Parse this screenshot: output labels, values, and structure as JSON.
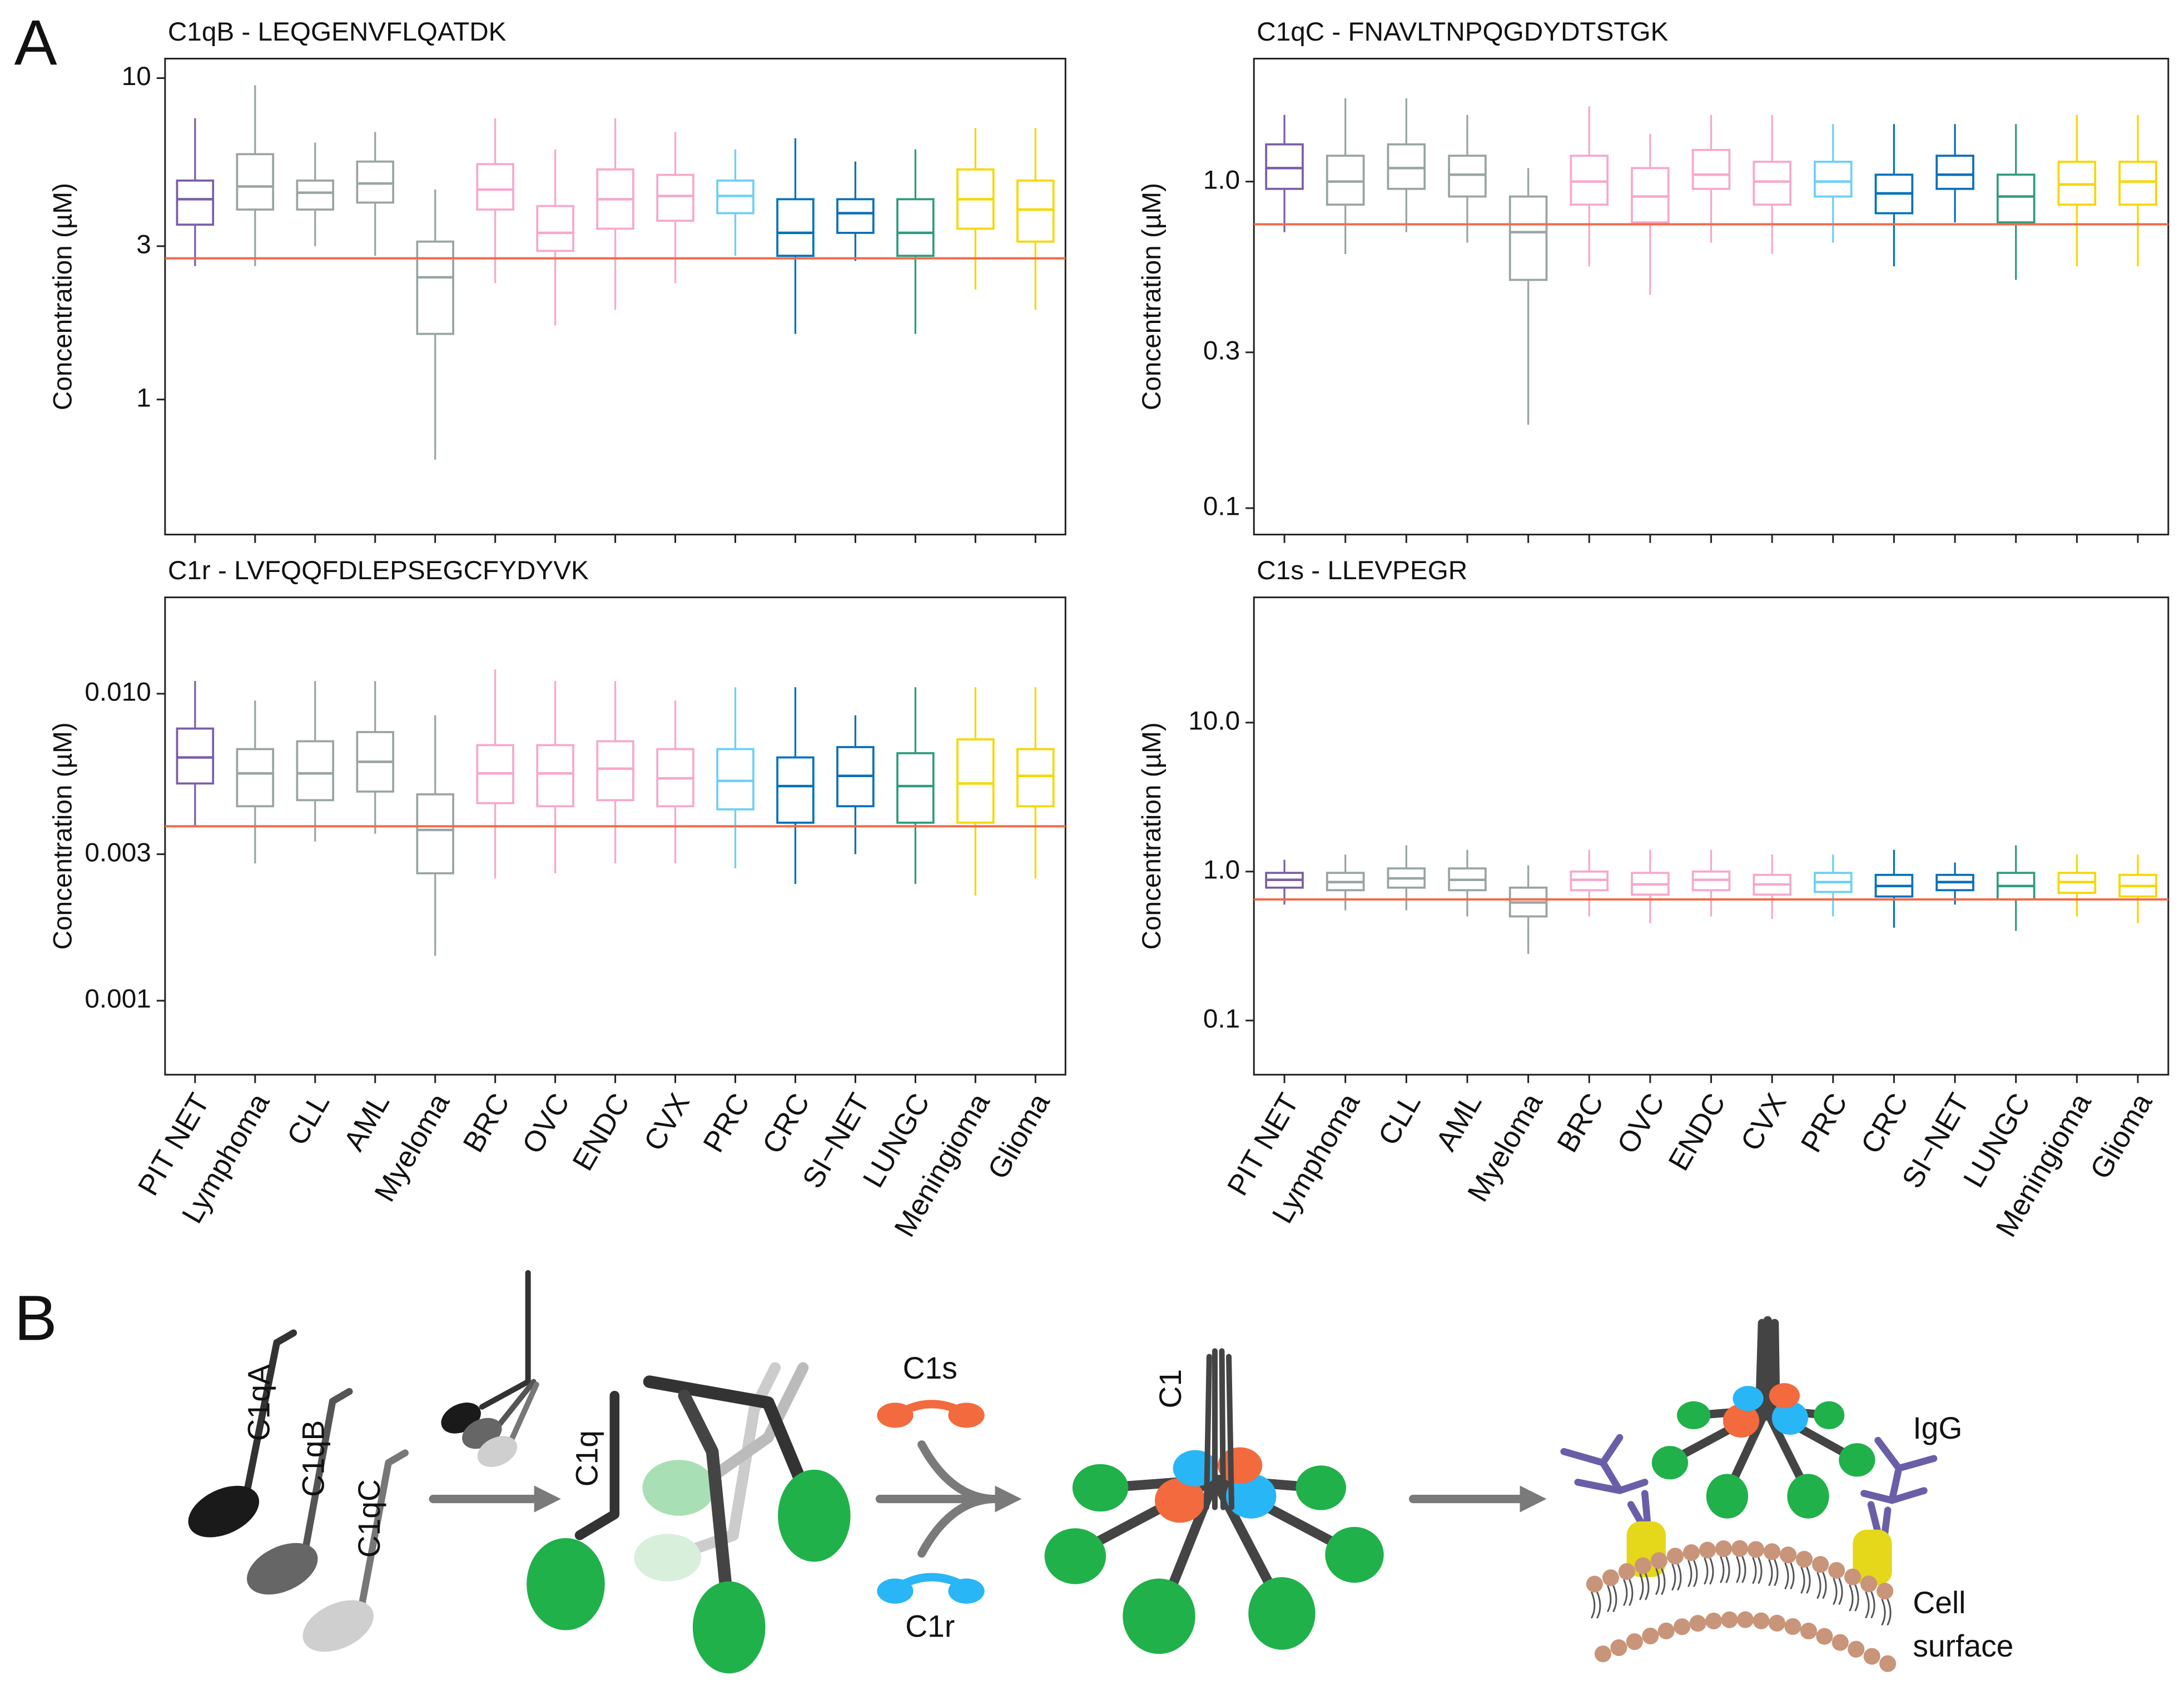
{
  "panel_labels": [
    "A",
    "B"
  ],
  "chart_data": [
    {
      "type": "box",
      "title": "C1qB - LEQGENVFLQATDK",
      "ylabel": "Concentration (µM)",
      "log_y": true,
      "ylim": [
        0.38,
        11.5
      ],
      "yticks": [
        1,
        3,
        10
      ],
      "hline": 2.75,
      "hline_color": "#f26b4a",
      "categories": [
        null,
        null,
        null,
        null,
        null,
        null,
        null,
        null,
        null,
        null,
        null,
        null,
        null,
        null,
        null
      ],
      "colors": [
        "#7b5ea7",
        "#9aa4a4",
        "#9aa4a4",
        "#9aa4a4",
        "#9aa4a4",
        "#f7a8cc",
        "#f7a8cc",
        "#f7a8cc",
        "#f7a8cc",
        "#6ccff6",
        "#0072bb",
        "#0b6fb8",
        "#2e9c7f",
        "#f5d800",
        "#f5d800"
      ],
      "min": [
        2.6,
        2.6,
        3.0,
        2.8,
        0.65,
        2.3,
        1.7,
        1.9,
        2.3,
        2.8,
        1.6,
        2.7,
        1.6,
        2.2,
        1.9
      ],
      "q1": [
        3.5,
        3.9,
        3.9,
        4.1,
        1.6,
        3.9,
        2.9,
        3.4,
        3.6,
        3.8,
        2.8,
        3.3,
        2.8,
        3.4,
        3.1
      ],
      "median": [
        4.2,
        4.6,
        4.4,
        4.7,
        2.4,
        4.5,
        3.3,
        4.2,
        4.3,
        4.3,
        3.3,
        3.8,
        3.3,
        4.2,
        3.9
      ],
      "q3": [
        4.8,
        5.8,
        4.8,
        5.5,
        3.1,
        5.4,
        4.0,
        5.2,
        5.0,
        4.8,
        4.2,
        4.2,
        4.2,
        5.2,
        4.8
      ],
      "max": [
        7.5,
        9.5,
        6.3,
        6.8,
        4.5,
        7.5,
        6.0,
        7.5,
        6.8,
        6.0,
        6.5,
        5.5,
        6.0,
        7.0,
        7.0
      ]
    },
    {
      "type": "box",
      "title": "C1qC - FNAVLTNPQGDYDTSTGK",
      "ylabel": "Concentration (µM)",
      "log_y": true,
      "ylim": [
        0.083,
        2.38
      ],
      "yticks": [
        0.1,
        0.3,
        {
          "value": 1,
          "label": "1.0"
        }
      ],
      "hline": 0.74,
      "hline_color": "#f26b4a",
      "categories": [
        null,
        null,
        null,
        null,
        null,
        null,
        null,
        null,
        null,
        null,
        null,
        null,
        null,
        null,
        null
      ],
      "colors": [
        "#7b5ea7",
        "#9aa4a4",
        "#9aa4a4",
        "#9aa4a4",
        "#9aa4a4",
        "#f7a8cc",
        "#f7a8cc",
        "#f7a8cc",
        "#f7a8cc",
        "#6ccff6",
        "#0072bb",
        "#0b6fb8",
        "#2e9c7f",
        "#f5d800",
        "#f5d800"
      ],
      "min": [
        0.7,
        0.6,
        0.7,
        0.65,
        0.18,
        0.55,
        0.45,
        0.65,
        0.6,
        0.65,
        0.55,
        0.75,
        0.5,
        0.55,
        0.55
      ],
      "q1": [
        0.95,
        0.85,
        0.95,
        0.9,
        0.5,
        0.85,
        0.75,
        0.95,
        0.85,
        0.9,
        0.8,
        0.95,
        0.75,
        0.85,
        0.85
      ],
      "median": [
        1.1,
        1.0,
        1.1,
        1.05,
        0.7,
        1.0,
        0.9,
        1.05,
        1.0,
        1.0,
        0.92,
        1.05,
        0.9,
        0.98,
        1.0
      ],
      "q3": [
        1.3,
        1.2,
        1.3,
        1.2,
        0.9,
        1.2,
        1.1,
        1.25,
        1.15,
        1.15,
        1.05,
        1.2,
        1.05,
        1.15,
        1.15
      ],
      "max": [
        1.6,
        1.8,
        1.8,
        1.6,
        1.1,
        1.7,
        1.4,
        1.6,
        1.6,
        1.5,
        1.5,
        1.5,
        1.5,
        1.6,
        1.6
      ]
    },
    {
      "type": "box",
      "title": "C1r - LVFQQFDLEPSEGCFYDYVK",
      "ylabel": "Concentration (µM)",
      "log_y": true,
      "ylim": [
        0.000574,
        0.0206
      ],
      "yticks": [
        0.001,
        0.003,
        {
          "value": 0.01,
          "label": "0.010"
        }
      ],
      "hline": 0.0037,
      "hline_color": "#f26b4a",
      "categories": [
        "PIT NET",
        "Lymphoma",
        "CLL",
        "AML",
        "Myeloma",
        "BRC",
        "OVC",
        "ENDC",
        "CVX",
        "PRC",
        "CRC",
        "SI−NET",
        "LUNGC",
        "Meningioma",
        "Glioma"
      ],
      "colors": [
        "#7b5ea7",
        "#9aa4a4",
        "#9aa4a4",
        "#9aa4a4",
        "#9aa4a4",
        "#f7a8cc",
        "#f7a8cc",
        "#f7a8cc",
        "#f7a8cc",
        "#6ccff6",
        "#0072bb",
        "#0b6fb8",
        "#2e9c7f",
        "#f5d800",
        "#f5d800"
      ],
      "min": [
        0.0037,
        0.0028,
        0.0033,
        0.0035,
        0.0014,
        0.0025,
        0.0026,
        0.0028,
        0.0028,
        0.0027,
        0.0024,
        0.003,
        0.0024,
        0.0022,
        0.0025
      ],
      "q1": [
        0.0051,
        0.0043,
        0.0045,
        0.0048,
        0.0026,
        0.0044,
        0.0043,
        0.0045,
        0.0043,
        0.0042,
        0.0038,
        0.0043,
        0.0038,
        0.0038,
        0.0043
      ],
      "median": [
        0.0062,
        0.0055,
        0.0055,
        0.006,
        0.0036,
        0.0055,
        0.0055,
        0.0057,
        0.0053,
        0.0052,
        0.005,
        0.0054,
        0.005,
        0.0051,
        0.0054
      ],
      "q3": [
        0.0077,
        0.0066,
        0.007,
        0.0075,
        0.0047,
        0.0068,
        0.0068,
        0.007,
        0.0066,
        0.0066,
        0.0062,
        0.0067,
        0.0064,
        0.0071,
        0.0066
      ],
      "max": [
        0.011,
        0.0095,
        0.011,
        0.011,
        0.0085,
        0.012,
        0.011,
        0.011,
        0.0095,
        0.0105,
        0.0105,
        0.0085,
        0.0105,
        0.0105,
        0.0105
      ]
    },
    {
      "type": "box",
      "title": "C1s - LLEVPEGR",
      "ylabel": "Concentration (µM)",
      "log_y": true,
      "ylim": [
        0.0433,
        69.3
      ],
      "yticks": [
        0.1,
        {
          "value": 1,
          "label": "1.0"
        },
        {
          "value": 10,
          "label": "10.0"
        }
      ],
      "hline": 0.65,
      "hline_color": "#f26b4a",
      "categories": [
        "PIT NET",
        "Lymphoma",
        "CLL",
        "AML",
        "Myeloma",
        "BRC",
        "OVC",
        "ENDC",
        "CVX",
        "PRC",
        "CRC",
        "SI−NET",
        "LUNGC",
        "Meningioma",
        "Glioma"
      ],
      "colors": [
        "#7b5ea7",
        "#9aa4a4",
        "#9aa4a4",
        "#9aa4a4",
        "#9aa4a4",
        "#f7a8cc",
        "#f7a8cc",
        "#f7a8cc",
        "#f7a8cc",
        "#6ccff6",
        "#0072bb",
        "#0b6fb8",
        "#2e9c7f",
        "#f5d800",
        "#f5d800"
      ],
      "min": [
        0.6,
        0.55,
        0.55,
        0.5,
        0.28,
        0.5,
        0.45,
        0.5,
        0.48,
        0.5,
        0.42,
        0.6,
        0.4,
        0.5,
        0.45
      ],
      "q1": [
        0.78,
        0.75,
        0.78,
        0.75,
        0.5,
        0.75,
        0.7,
        0.75,
        0.7,
        0.73,
        0.68,
        0.75,
        0.65,
        0.72,
        0.68
      ],
      "median": [
        0.88,
        0.85,
        0.9,
        0.88,
        0.62,
        0.88,
        0.82,
        0.88,
        0.82,
        0.85,
        0.8,
        0.85,
        0.8,
        0.85,
        0.8
      ],
      "q3": [
        0.98,
        0.98,
        1.05,
        1.05,
        0.78,
        1.0,
        0.98,
        1.0,
        0.95,
        0.98,
        0.95,
        0.95,
        0.98,
        0.98,
        0.95
      ],
      "max": [
        1.2,
        1.3,
        1.5,
        1.4,
        1.1,
        1.4,
        1.4,
        1.4,
        1.3,
        1.3,
        1.4,
        1.15,
        1.5,
        1.3,
        1.3
      ]
    }
  ],
  "diagram": {
    "labels": [
      "C1qA",
      "C1qB",
      "C1qC",
      "C1q",
      "C1s",
      "C1r",
      "C1",
      "IgG",
      "Cell",
      "surface"
    ]
  }
}
